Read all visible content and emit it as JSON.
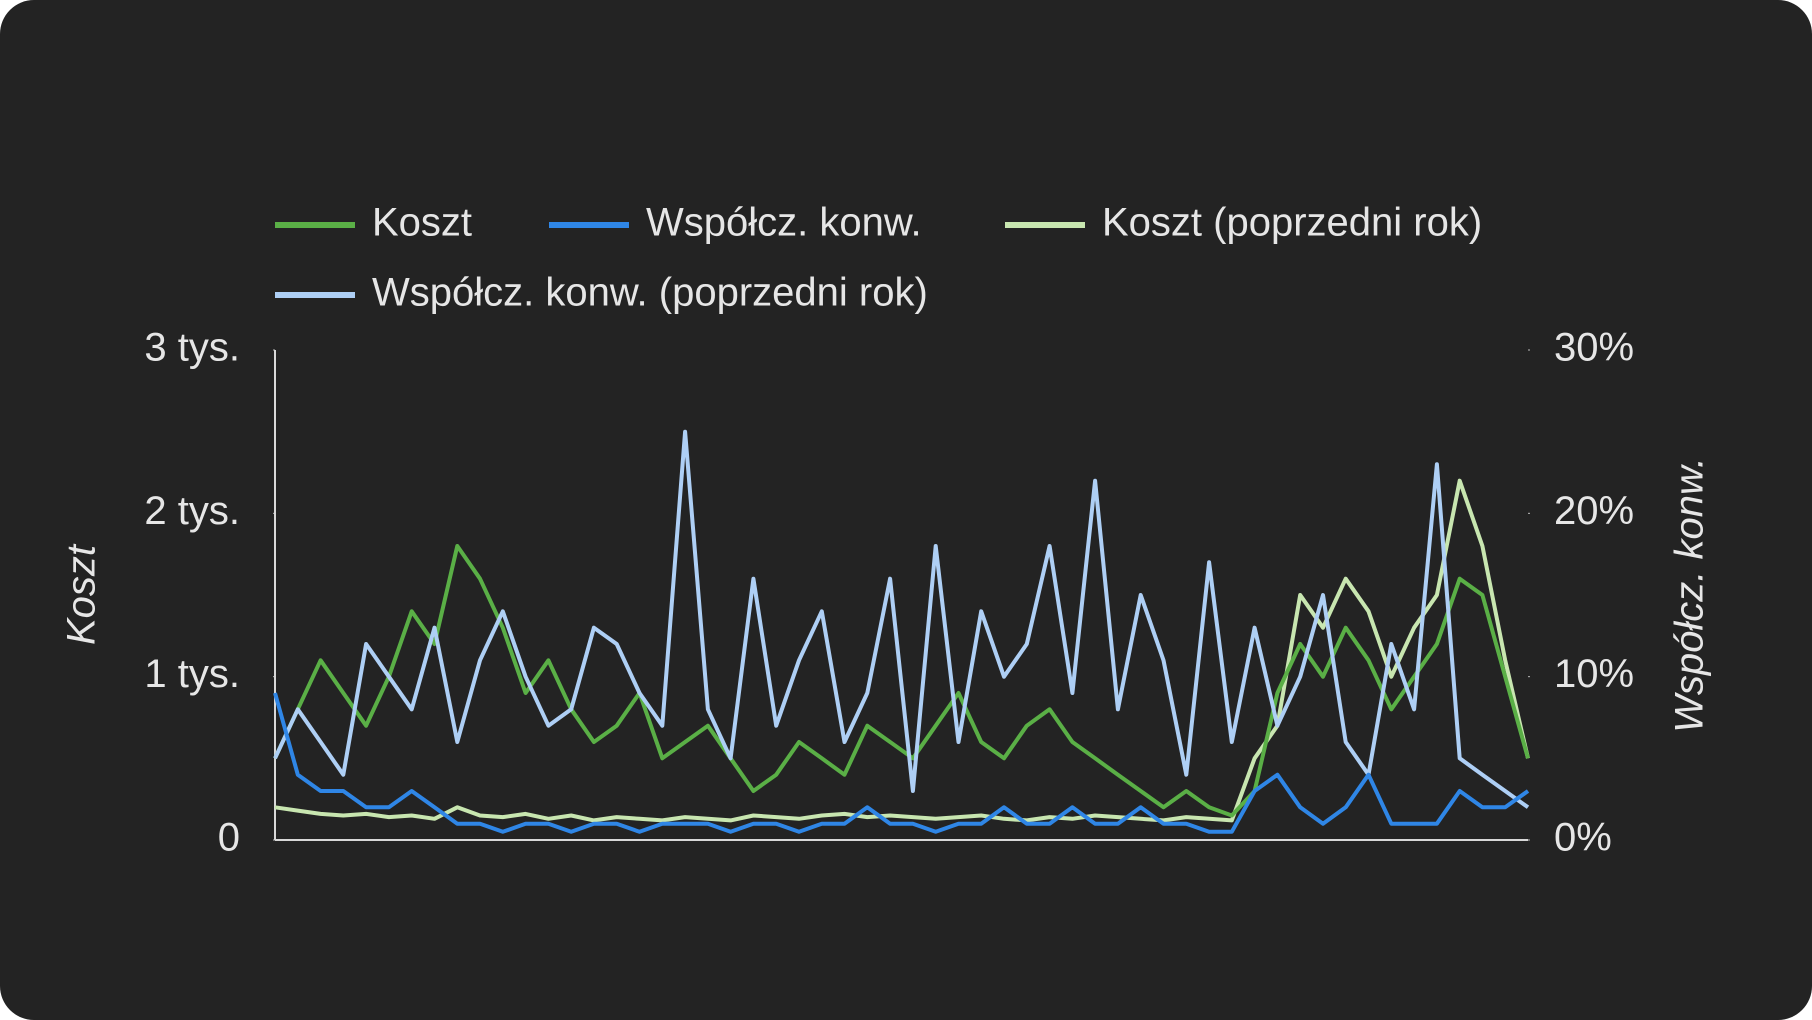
{
  "chart_data": {
    "type": "line",
    "ylabel": "Koszt",
    "y2label": "Współcz. konw.",
    "ylim": [
      0,
      3000
    ],
    "yticks": [
      0,
      {
        "value": 1000,
        "label": "1 tys."
      },
      {
        "value": 2000,
        "label": "2 tys."
      },
      {
        "value": 3000,
        "label": "3 tys."
      }
    ],
    "y2lim": [
      0,
      30
    ],
    "y2ticks": [
      {
        "value": 0,
        "label": "0%"
      },
      {
        "value": 10,
        "label": "10%"
      },
      {
        "value": 20,
        "label": "20%"
      },
      {
        "value": 30,
        "label": "30%"
      }
    ],
    "legend": "top",
    "series": [
      {
        "name": "Koszt",
        "color": "#5aaf46",
        "values": [
          500,
          800,
          1100,
          900,
          700,
          1000,
          1400,
          1200,
          1800,
          1600,
          1300,
          900,
          1100,
          800,
          600,
          700,
          900,
          500,
          600,
          700,
          500,
          300,
          400,
          600,
          500,
          400,
          700,
          600,
          500,
          700,
          900,
          600,
          500,
          700,
          800,
          600,
          500,
          400,
          300,
          200,
          300,
          200,
          150,
          300,
          900,
          1200,
          1000,
          1300,
          1100,
          800,
          1000,
          1200,
          1600,
          1500,
          1000,
          500
        ]
      },
      {
        "name": "Współcz. konw.",
        "color": "#2f86e6",
        "axis": "y2",
        "values": [
          9,
          4,
          3,
          3,
          2,
          2,
          3,
          2,
          1,
          1,
          0.5,
          1,
          1,
          0.5,
          1,
          1,
          0.5,
          1,
          1,
          1,
          0.5,
          1,
          1,
          0.5,
          1,
          1,
          2,
          1,
          1,
          0.5,
          1,
          1,
          2,
          1,
          1,
          2,
          1,
          1,
          2,
          1,
          1,
          0.5,
          0.5,
          3,
          4,
          2,
          1,
          2,
          4,
          1,
          1,
          1,
          3,
          2,
          2,
          3
        ]
      },
      {
        "name": "Koszt (poprzedni rok)",
        "color": "#c8e6b0",
        "values": [
          200,
          180,
          160,
          150,
          160,
          140,
          150,
          130,
          200,
          150,
          140,
          160,
          130,
          150,
          120,
          140,
          130,
          120,
          140,
          130,
          120,
          150,
          140,
          130,
          150,
          160,
          140,
          150,
          140,
          130,
          140,
          150,
          130,
          120,
          140,
          130,
          150,
          140,
          130,
          120,
          140,
          130,
          120,
          500,
          700,
          1500,
          1300,
          1600,
          1400,
          1000,
          1300,
          1500,
          2200,
          1800,
          1100,
          500
        ]
      },
      {
        "name": "Współcz. konw. (poprzedni rok)",
        "color": "#aecff5",
        "axis": "y2",
        "values": [
          5,
          8,
          6,
          4,
          12,
          10,
          8,
          13,
          6,
          11,
          14,
          10,
          7,
          8,
          13,
          12,
          9,
          7,
          25,
          8,
          5,
          16,
          7,
          11,
          14,
          6,
          9,
          16,
          3,
          18,
          6,
          14,
          10,
          12,
          18,
          9,
          22,
          8,
          15,
          11,
          4,
          17,
          6,
          13,
          7,
          10,
          15,
          6,
          4,
          12,
          8,
          23,
          5,
          4,
          3,
          2
        ]
      }
    ]
  }
}
